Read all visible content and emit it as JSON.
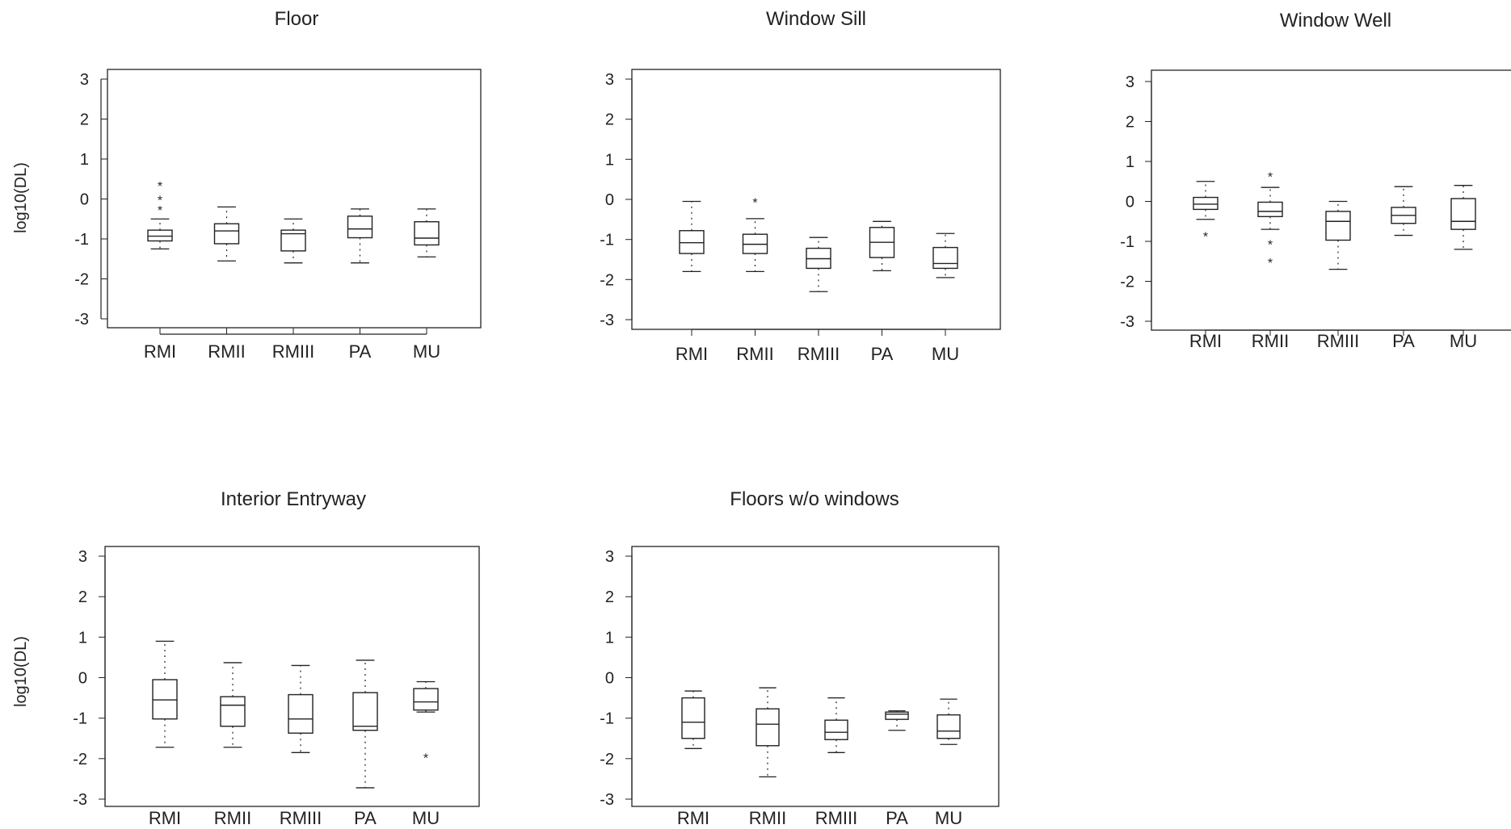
{
  "chart_data": [
    {
      "type": "box",
      "title": "Floor",
      "ylabel": "log10(DL)",
      "categories": [
        "RMI",
        "RMII",
        "RMIII",
        "PA",
        "MU"
      ],
      "ylim": [
        -3.25,
        3.25
      ],
      "yticks": [
        "3",
        "2",
        "1",
        "0",
        "-1",
        "-2",
        "-3"
      ],
      "boxes": [
        {
          "whisker_low": -1.25,
          "q1": -1.05,
          "median": -0.93,
          "q3": -0.78,
          "whisker_high": -0.5,
          "outliers": [
            0.35,
            0.0,
            -0.25
          ]
        },
        {
          "whisker_low": -1.55,
          "q1": -1.12,
          "median": -0.8,
          "q3": -0.62,
          "whisker_high": -0.2,
          "outliers": []
        },
        {
          "whisker_low": -1.6,
          "q1": -1.3,
          "median": -0.87,
          "q3": -0.78,
          "whisker_high": -0.5,
          "outliers": []
        },
        {
          "whisker_low": -1.6,
          "q1": -0.97,
          "median": -0.75,
          "q3": -0.43,
          "whisker_high": -0.25,
          "outliers": []
        },
        {
          "whisker_low": -1.45,
          "q1": -1.15,
          "median": -0.98,
          "q3": -0.57,
          "whisker_high": -0.25,
          "outliers": []
        }
      ]
    },
    {
      "type": "box",
      "title": "Window Sill",
      "ylabel": "",
      "categories": [
        "RMI",
        "RMII",
        "RMIII",
        "PA",
        "MU"
      ],
      "ylim": [
        -3.25,
        3.25
      ],
      "yticks": [
        "3",
        "2",
        "1",
        "0",
        "-1",
        "-2",
        "-3"
      ],
      "boxes": [
        {
          "whisker_low": -1.8,
          "q1": -1.35,
          "median": -1.08,
          "q3": -0.78,
          "whisker_high": -0.05,
          "outliers": []
        },
        {
          "whisker_low": -1.8,
          "q1": -1.35,
          "median": -1.12,
          "q3": -0.87,
          "whisker_high": -0.48,
          "outliers": [
            -0.05
          ]
        },
        {
          "whisker_low": -2.3,
          "q1": -1.72,
          "median": -1.48,
          "q3": -1.22,
          "whisker_high": -0.95,
          "outliers": []
        },
        {
          "whisker_low": -1.78,
          "q1": -1.45,
          "median": -1.07,
          "q3": -0.7,
          "whisker_high": -0.55,
          "outliers": []
        },
        {
          "whisker_low": -1.95,
          "q1": -1.72,
          "median": -1.6,
          "q3": -1.2,
          "whisker_high": -0.85,
          "outliers": []
        }
      ]
    },
    {
      "type": "box",
      "title": "Window Well",
      "ylabel": "",
      "categories": [
        "RMI",
        "RMII",
        "RMIII",
        "PA",
        "MU"
      ],
      "ylim": [
        -3.25,
        3.25
      ],
      "yticks": [
        "3",
        "2",
        "1",
        "0",
        "-1",
        "-2",
        "-3"
      ],
      "boxes": [
        {
          "whisker_low": -0.45,
          "q1": -0.2,
          "median": -0.07,
          "q3": 0.1,
          "whisker_high": 0.5,
          "outliers": [
            -0.85
          ]
        },
        {
          "whisker_low": -0.7,
          "q1": -0.38,
          "median": -0.25,
          "q3": -0.02,
          "whisker_high": 0.35,
          "outliers": [
            0.65,
            -1.05,
            -1.5
          ]
        },
        {
          "whisker_low": -1.7,
          "q1": -0.97,
          "median": -0.5,
          "q3": -0.25,
          "whisker_high": 0.0,
          "outliers": []
        },
        {
          "whisker_low": -0.85,
          "q1": -0.55,
          "median": -0.35,
          "q3": -0.15,
          "whisker_high": 0.37,
          "outliers": []
        },
        {
          "whisker_low": -1.2,
          "q1": -0.7,
          "median": -0.5,
          "q3": 0.07,
          "whisker_high": 0.4,
          "outliers": []
        }
      ]
    },
    {
      "type": "box",
      "title": "Interior Entryway",
      "ylabel": "log10(DL)",
      "categories": [
        "RMI",
        "RMII",
        "RMIII",
        "PA",
        "MU"
      ],
      "ylim": [
        -3.25,
        3.25
      ],
      "yticks": [
        "3",
        "2",
        "1",
        "0",
        "-1",
        "-2",
        "-3"
      ],
      "boxes": [
        {
          "whisker_low": -1.72,
          "q1": -1.02,
          "median": -0.55,
          "q3": -0.05,
          "whisker_high": 0.9,
          "outliers": []
        },
        {
          "whisker_low": -1.72,
          "q1": -1.2,
          "median": -0.68,
          "q3": -0.47,
          "whisker_high": 0.37,
          "outliers": []
        },
        {
          "whisker_low": -1.85,
          "q1": -1.37,
          "median": -1.02,
          "q3": -0.42,
          "whisker_high": 0.3,
          "outliers": []
        },
        {
          "whisker_low": -2.72,
          "q1": -1.3,
          "median": -1.2,
          "q3": -0.37,
          "whisker_high": 0.43,
          "outliers": []
        },
        {
          "whisker_low": -0.85,
          "q1": -0.8,
          "median": -0.6,
          "q3": -0.27,
          "whisker_high": -0.1,
          "outliers": [
            -1.95
          ]
        }
      ]
    },
    {
      "type": "box",
      "title": "Floors w/o windows",
      "ylabel": "",
      "categories": [
        "RMI",
        "RMII",
        "RMIII",
        "PA",
        "MU"
      ],
      "ylim": [
        -3.25,
        3.25
      ],
      "yticks": [
        "3",
        "2",
        "1",
        "0",
        "-1",
        "-2",
        "-3"
      ],
      "boxes": [
        {
          "whisker_low": -1.75,
          "q1": -1.5,
          "median": -1.1,
          "q3": -0.5,
          "whisker_high": -0.33,
          "outliers": []
        },
        {
          "whisker_low": -2.45,
          "q1": -1.68,
          "median": -1.15,
          "q3": -0.77,
          "whisker_high": -0.25,
          "outliers": []
        },
        {
          "whisker_low": -1.85,
          "q1": -1.53,
          "median": -1.35,
          "q3": -1.05,
          "whisker_high": -0.5,
          "outliers": []
        },
        {
          "whisker_low": -1.3,
          "q1": -1.03,
          "median": -0.9,
          "q3": -0.85,
          "whisker_high": -0.82,
          "outliers": []
        },
        {
          "whisker_low": -1.65,
          "q1": -1.5,
          "median": -1.32,
          "q3": -0.92,
          "whisker_high": -0.53,
          "outliers": []
        }
      ]
    }
  ]
}
